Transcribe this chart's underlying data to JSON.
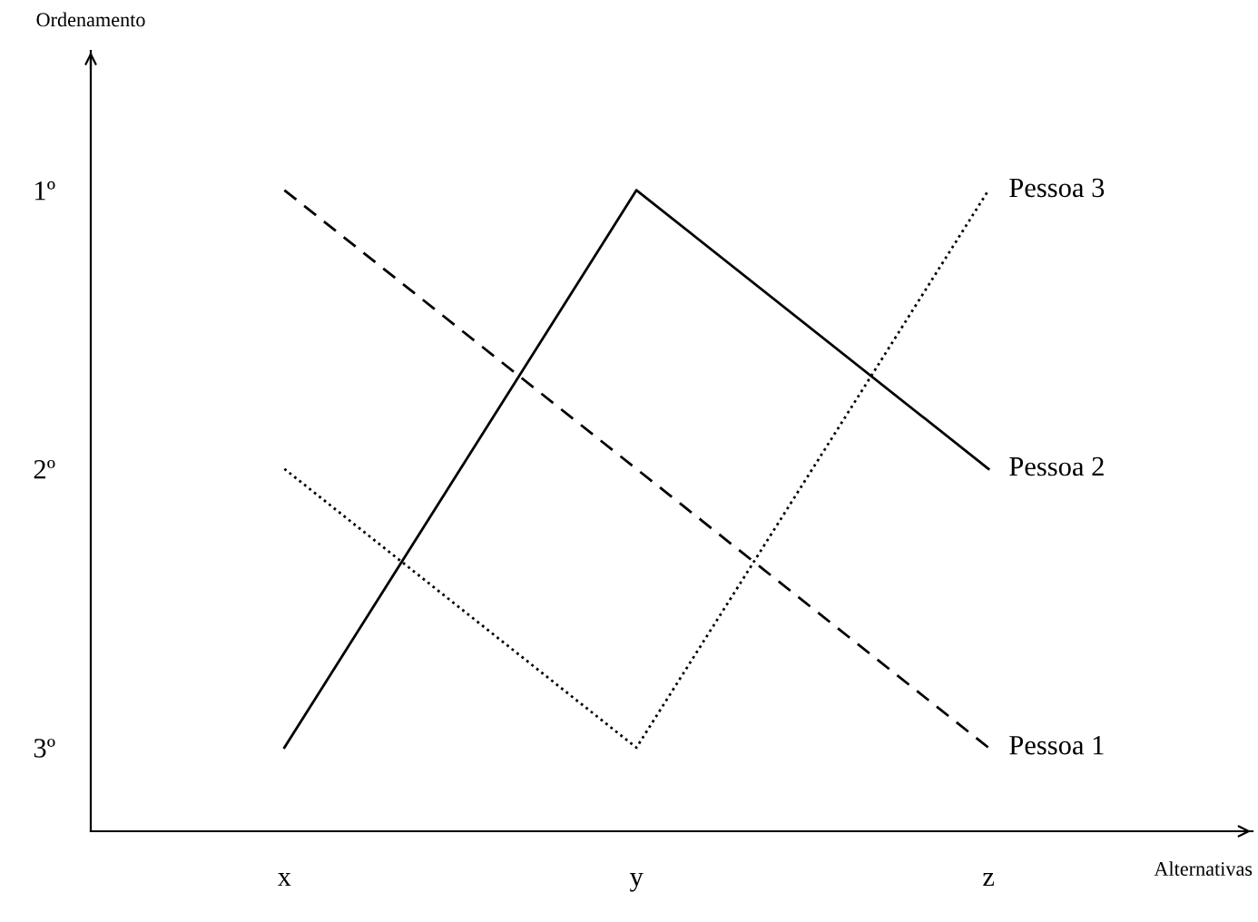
{
  "chart_data": {
    "type": "line",
    "xlabel": "Alternativas",
    "ylabel": "Ordenamento",
    "categories": [
      "x",
      "y",
      "z"
    ],
    "ylim": [
      3.3,
      0.5
    ],
    "yticks": [
      {
        "value": 1,
        "label": "1º"
      },
      {
        "value": 2,
        "label": "2º"
      },
      {
        "value": 3,
        "label": "3º"
      }
    ],
    "grid": false,
    "legend": false,
    "marker": "none",
    "series": [
      {
        "name": "Pessoa 1",
        "color": "#000000",
        "line_style": "dashed",
        "values": [
          1,
          2,
          3
        ]
      },
      {
        "name": "Pessoa 2",
        "color": "#000000",
        "line_style": "solid",
        "values": [
          3,
          1,
          2
        ]
      },
      {
        "name": "Pessoa 3",
        "color": "#000000",
        "line_style": "dotted",
        "values": [
          2,
          3,
          1
        ]
      }
    ]
  }
}
